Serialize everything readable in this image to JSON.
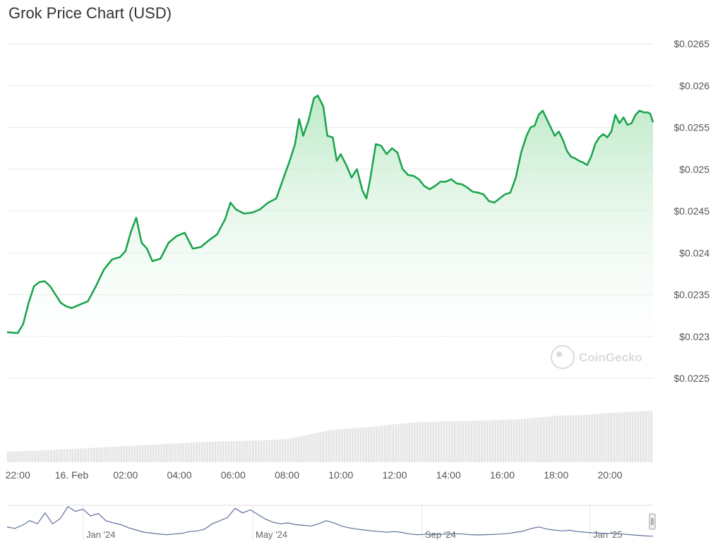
{
  "chart_data": {
    "type": "area",
    "title": "Grok Price Chart (USD)",
    "watermark": "CoinGecko",
    "y_axis": {
      "ticks": [
        "$0.0225",
        "$0.023",
        "$0.0235",
        "$0.024",
        "$0.0245",
        "$0.025",
        "$0.0255",
        "$0.026",
        "$0.0265"
      ],
      "tick_values": [
        0.0225,
        0.023,
        0.0235,
        0.024,
        0.0245,
        0.025,
        0.0255,
        0.026,
        0.0265
      ],
      "ylim": [
        0.0225,
        0.0265
      ],
      "position": "right",
      "grid": true
    },
    "x_axis": {
      "ticks": [
        "22:00",
        "16. Feb",
        "02:00",
        "04:00",
        "06:00",
        "08:00",
        "10:00",
        "12:00",
        "14:00",
        "16:00",
        "18:00",
        "20:00"
      ],
      "tick_hours": [
        22,
        24,
        26,
        28,
        30,
        32,
        34,
        36,
        38,
        40,
        42,
        44
      ],
      "xlim_hours": [
        21.6,
        45.6
      ]
    },
    "series": [
      {
        "values": [
          [
            21.6,
            0.02305
          ],
          [
            22.0,
            0.02304
          ],
          [
            22.2,
            0.02315
          ],
          [
            22.4,
            0.0234
          ],
          [
            22.6,
            0.0236
          ],
          [
            22.8,
            0.02365
          ],
          [
            23.0,
            0.02366
          ],
          [
            23.2,
            0.0236
          ],
          [
            23.4,
            0.0235
          ],
          [
            23.6,
            0.0234
          ],
          [
            23.8,
            0.02336
          ],
          [
            24.0,
            0.02334
          ],
          [
            24.3,
            0.02338
          ],
          [
            24.6,
            0.02342
          ],
          [
            24.9,
            0.0236
          ],
          [
            25.2,
            0.0238
          ],
          [
            25.5,
            0.02392
          ],
          [
            25.8,
            0.02395
          ],
          [
            26.0,
            0.02402
          ],
          [
            26.2,
            0.02425
          ],
          [
            26.4,
            0.02442
          ],
          [
            26.6,
            0.02412
          ],
          [
            26.8,
            0.02405
          ],
          [
            27.0,
            0.0239
          ],
          [
            27.3,
            0.02393
          ],
          [
            27.6,
            0.02412
          ],
          [
            27.9,
            0.0242
          ],
          [
            28.2,
            0.02424
          ],
          [
            28.5,
            0.02405
          ],
          [
            28.8,
            0.02407
          ],
          [
            29.1,
            0.02415
          ],
          [
            29.4,
            0.02422
          ],
          [
            29.7,
            0.0244
          ],
          [
            29.9,
            0.0246
          ],
          [
            30.1,
            0.02452
          ],
          [
            30.4,
            0.02447
          ],
          [
            30.7,
            0.02448
          ],
          [
            31.0,
            0.02452
          ],
          [
            31.3,
            0.0246
          ],
          [
            31.6,
            0.02465
          ],
          [
            31.9,
            0.02492
          ],
          [
            32.1,
            0.0251
          ],
          [
            32.3,
            0.0253
          ],
          [
            32.45,
            0.0256
          ],
          [
            32.6,
            0.0254
          ],
          [
            32.8,
            0.02558
          ],
          [
            33.0,
            0.02585
          ],
          [
            33.15,
            0.02588
          ],
          [
            33.35,
            0.02575
          ],
          [
            33.5,
            0.0254
          ],
          [
            33.7,
            0.02538
          ],
          [
            33.85,
            0.0251
          ],
          [
            34.0,
            0.02518
          ],
          [
            34.2,
            0.02505
          ],
          [
            34.4,
            0.0249
          ],
          [
            34.6,
            0.025
          ],
          [
            34.8,
            0.02475
          ],
          [
            34.95,
            0.02465
          ],
          [
            35.1,
            0.0249
          ],
          [
            35.3,
            0.0253
          ],
          [
            35.5,
            0.02528
          ],
          [
            35.7,
            0.02518
          ],
          [
            35.9,
            0.02525
          ],
          [
            36.1,
            0.0252
          ],
          [
            36.3,
            0.025
          ],
          [
            36.5,
            0.02493
          ],
          [
            36.7,
            0.02492
          ],
          [
            36.9,
            0.02488
          ],
          [
            37.1,
            0.0248
          ],
          [
            37.3,
            0.02476
          ],
          [
            37.5,
            0.0248
          ],
          [
            37.7,
            0.02485
          ],
          [
            37.9,
            0.02485
          ],
          [
            38.1,
            0.02488
          ],
          [
            38.3,
            0.02483
          ],
          [
            38.5,
            0.02482
          ],
          [
            38.7,
            0.02478
          ],
          [
            38.9,
            0.02473
          ],
          [
            39.1,
            0.02472
          ],
          [
            39.3,
            0.0247
          ],
          [
            39.5,
            0.02462
          ],
          [
            39.7,
            0.0246
          ],
          [
            39.9,
            0.02465
          ],
          [
            40.1,
            0.0247
          ],
          [
            40.3,
            0.02472
          ],
          [
            40.5,
            0.0249
          ],
          [
            40.7,
            0.0252
          ],
          [
            40.9,
            0.0254
          ],
          [
            41.05,
            0.0255
          ],
          [
            41.2,
            0.02552
          ],
          [
            41.35,
            0.02565
          ],
          [
            41.5,
            0.0257
          ],
          [
            41.65,
            0.0256
          ],
          [
            41.8,
            0.0255
          ],
          [
            41.95,
            0.0254
          ],
          [
            42.1,
            0.02545
          ],
          [
            42.25,
            0.02535
          ],
          [
            42.4,
            0.02522
          ],
          [
            42.55,
            0.02515
          ],
          [
            42.7,
            0.02513
          ],
          [
            42.85,
            0.0251
          ],
          [
            43.0,
            0.02508
          ],
          [
            43.15,
            0.02505
          ],
          [
            43.3,
            0.02515
          ],
          [
            43.45,
            0.0253
          ],
          [
            43.6,
            0.02538
          ],
          [
            43.75,
            0.02542
          ],
          [
            43.9,
            0.02538
          ],
          [
            44.05,
            0.02545
          ],
          [
            44.2,
            0.02565
          ],
          [
            44.35,
            0.02555
          ],
          [
            44.5,
            0.02562
          ],
          [
            44.65,
            0.02553
          ],
          [
            44.8,
            0.02555
          ],
          [
            44.95,
            0.02565
          ],
          [
            45.1,
            0.0257
          ],
          [
            45.25,
            0.02568
          ],
          [
            45.4,
            0.02568
          ],
          [
            45.5,
            0.02566
          ],
          [
            45.6,
            0.02556
          ]
        ],
        "color": "#16a34a",
        "fill_top": "#b9e8c4"
      }
    ],
    "volume": {
      "type": "bar",
      "color": "#e6e6e6",
      "values": [
        [
          21.6,
          0.15
        ],
        [
          23.0,
          0.17
        ],
        [
          24.0,
          0.19
        ],
        [
          25.0,
          0.21
        ],
        [
          26.0,
          0.23
        ],
        [
          27.0,
          0.25
        ],
        [
          28.0,
          0.27
        ],
        [
          29.0,
          0.29
        ],
        [
          30.0,
          0.3
        ],
        [
          31.0,
          0.31
        ],
        [
          32.0,
          0.33
        ],
        [
          32.5,
          0.37
        ],
        [
          33.0,
          0.41
        ],
        [
          33.5,
          0.45
        ],
        [
          34.0,
          0.47
        ],
        [
          35.0,
          0.5
        ],
        [
          36.0,
          0.54
        ],
        [
          37.0,
          0.57
        ],
        [
          38.0,
          0.58
        ],
        [
          39.0,
          0.59
        ],
        [
          40.0,
          0.6
        ],
        [
          41.0,
          0.62
        ],
        [
          42.0,
          0.66
        ],
        [
          43.0,
          0.67
        ],
        [
          44.0,
          0.7
        ],
        [
          45.0,
          0.72
        ],
        [
          45.6,
          0.73
        ]
      ]
    },
    "navigator": {
      "labels": [
        "Jan '24",
        "May '24",
        "Sep '24",
        "Jan '25"
      ],
      "line_color": "#5f6f9a",
      "values": [
        0.35,
        0.3,
        0.4,
        0.55,
        0.45,
        0.8,
        0.45,
        0.62,
        1.0,
        0.85,
        0.92,
        0.7,
        0.78,
        0.55,
        0.48,
        0.42,
        0.32,
        0.25,
        0.18,
        0.15,
        0.12,
        0.1,
        0.12,
        0.14,
        0.2,
        0.22,
        0.28,
        0.45,
        0.55,
        0.65,
        0.95,
        0.8,
        0.9,
        0.75,
        0.6,
        0.5,
        0.45,
        0.48,
        0.42,
        0.4,
        0.38,
        0.45,
        0.55,
        0.48,
        0.38,
        0.32,
        0.28,
        0.25,
        0.22,
        0.2,
        0.18,
        0.2,
        0.17,
        0.12,
        0.1,
        0.11,
        0.12,
        0.11,
        0.12,
        0.13,
        0.12,
        0.1,
        0.09,
        0.1,
        0.11,
        0.12,
        0.14,
        0.18,
        0.22,
        0.3,
        0.35,
        0.28,
        0.25,
        0.22,
        0.24,
        0.2,
        0.18,
        0.16,
        0.15,
        0.14,
        0.13,
        0.12,
        0.1,
        0.08,
        0.06,
        0.05
      ]
    }
  }
}
